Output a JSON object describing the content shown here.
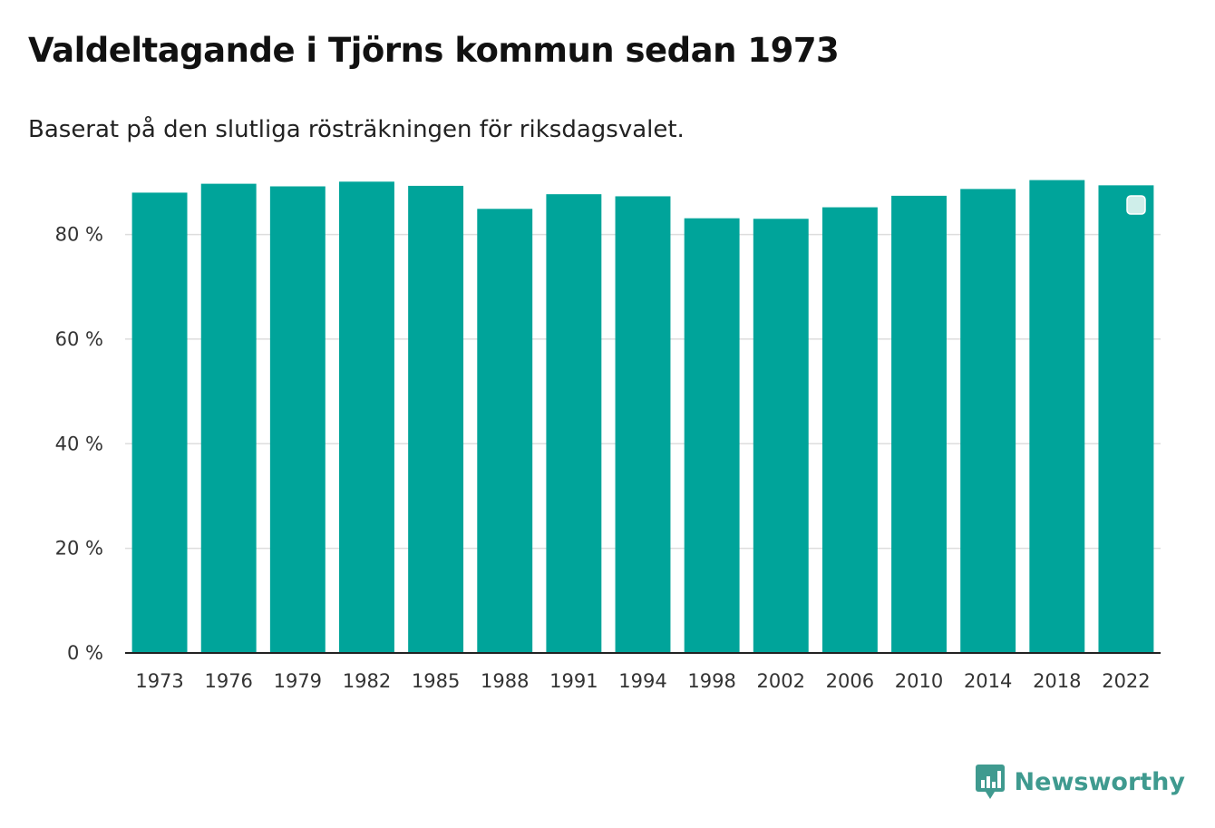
{
  "colors": {
    "bar": "#00a49a",
    "grid": "#dddddd",
    "axis": "#222222",
    "brand": "#3f9a8f",
    "legend_marker": "#cfeeea"
  },
  "chart_data": {
    "type": "bar",
    "title": "Valdeltagande i Tjörns kommun sedan 1973",
    "subtitle": "Baserat på den slutliga rösträkningen för riksdagsvalet.",
    "xlabel": "",
    "ylabel": "",
    "categories": [
      "1973",
      "1976",
      "1979",
      "1982",
      "1985",
      "1988",
      "1991",
      "1994",
      "1998",
      "2002",
      "2006",
      "2010",
      "2014",
      "2018",
      "2022"
    ],
    "values": [
      88.0,
      89.7,
      89.2,
      90.1,
      89.3,
      84.9,
      87.7,
      87.3,
      83.1,
      83.0,
      85.2,
      87.4,
      88.7,
      90.4,
      89.4
    ],
    "ylim": [
      0,
      90.5
    ],
    "yticks": [
      0,
      20,
      40,
      60,
      80
    ],
    "ytick_labels": [
      "0 %",
      "20 %",
      "40 %",
      "60 %",
      "80 %"
    ],
    "grid": true,
    "legend": "top-right"
  },
  "brand": {
    "name": "Newsworthy",
    "icon": "newsworthy-logo-icon"
  }
}
